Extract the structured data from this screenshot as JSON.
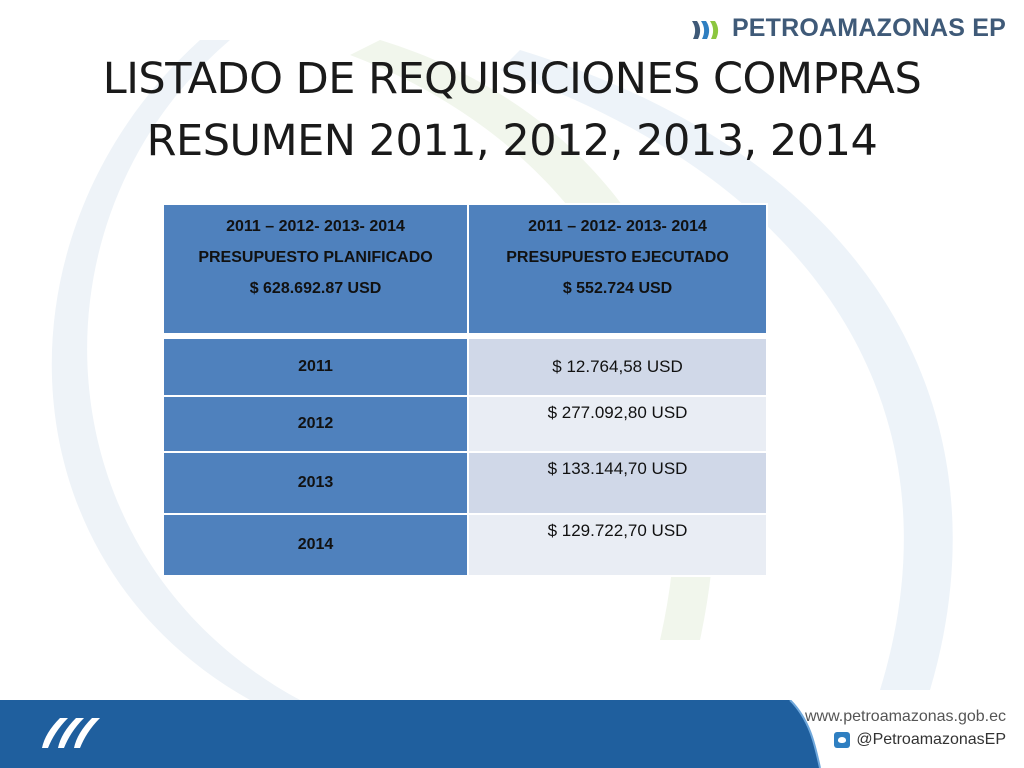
{
  "brand": {
    "logo_text": "PETROAMAZONAS EP"
  },
  "title": {
    "line1": "LISTADO DE REQUISICIONES COMPRAS",
    "line2": "RESUMEN 2011, 2012, 2013, 2014"
  },
  "table": {
    "header_left": {
      "years": "2011 – 2012- 2013- 2014",
      "label": "PRESUPUESTO PLANIFICADO",
      "amount": "$   628.692.87 USD"
    },
    "header_right": {
      "years": "2011 – 2012- 2013- 2014",
      "label": "PRESUPUESTO EJECUTADO",
      "amount": "$   552.724 USD"
    },
    "rows": [
      {
        "year": "2011",
        "value": "$ 12.764,58  USD"
      },
      {
        "year": "2012",
        "value": "$ 277.092,80  USD"
      },
      {
        "year": "2013",
        "value": "$ 133.144,70  USD"
      },
      {
        "year": "2014",
        "value": "$ 129.722,70   USD"
      }
    ]
  },
  "footer": {
    "url": "www.petroamazonas.gob.ec",
    "social_icon": "twitter-icon",
    "handle": "@PetroamazonasEP"
  },
  "colors": {
    "header_blue": "#4f81bd",
    "row_light_a": "#d0d8e8",
    "row_light_b": "#e9edf4",
    "footer_blue": "#1f5f9e",
    "logo_green": "#8cc63f",
    "logo_blue": "#3f5a78"
  }
}
